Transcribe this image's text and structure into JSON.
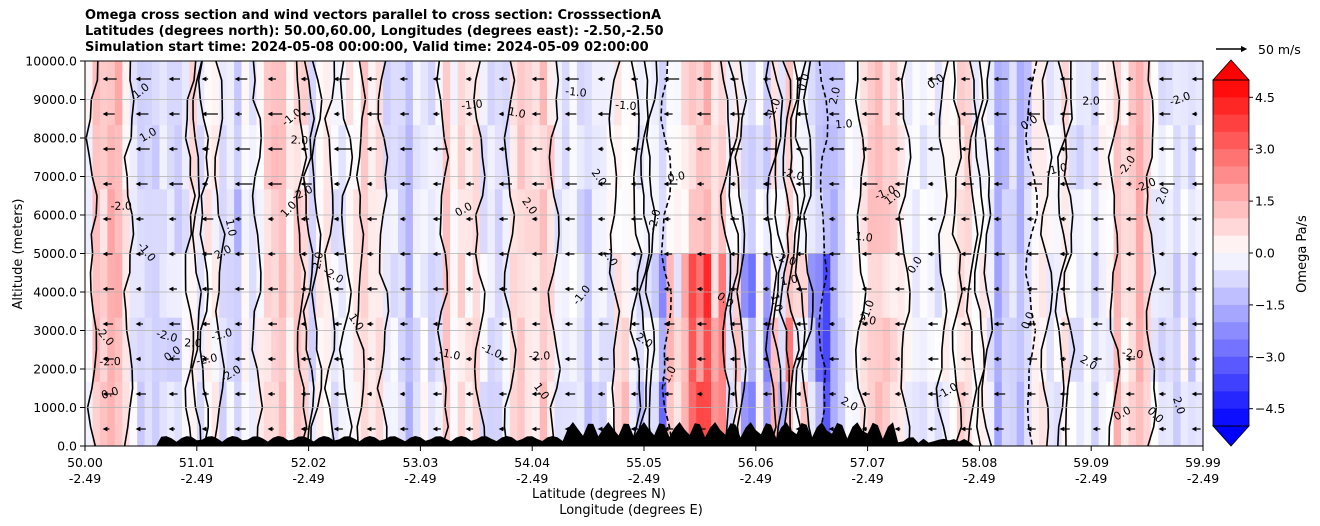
{
  "titles": [
    "Omega cross section and wind vectors parallel to cross section: CrosssectionA",
    "Latitudes (degrees north): 50.00,60.00, Longitudes (degrees east): -2.50,-2.50",
    "Simulation start time: 2024-05-08 00:00:00, Valid time: 2024-05-09 02:00:00"
  ],
  "chart_data": {
    "type": "heatmap",
    "ylabel": "Altitude (meters)",
    "xlabel_lat": "Latitude (degrees N)",
    "xlabel_lon": "Longitude (degrees E)",
    "ylim": [
      0,
      10000
    ],
    "y_ticks": [
      "0.0",
      "1000.0",
      "2000.0",
      "3000.0",
      "4000.0",
      "5000.0",
      "6000.0",
      "7000.0",
      "8000.0",
      "9000.0",
      "10000.0"
    ],
    "x_ticks_lat": [
      "50.00",
      "51.01",
      "52.02",
      "53.03",
      "54.04",
      "55.05",
      "56.06",
      "57.07",
      "58.08",
      "59.09",
      "59.99"
    ],
    "x_ticks_lon": [
      "-2.49",
      "-2.49",
      "-2.49",
      "-2.49",
      "-2.49",
      "-2.49",
      "-2.49",
      "-2.49",
      "-2.49",
      "-2.49",
      "-2.49"
    ],
    "grid": "horizontal",
    "colorbar": {
      "label": "Omega Pa/s",
      "ticks": [
        "4.5",
        "3.0",
        "1.5",
        "0.0",
        "−1.5",
        "−3.0",
        "−4.5"
      ],
      "range": [
        -5,
        5
      ],
      "colormap": "bwr",
      "extend": "both"
    },
    "quiver_key": "50 m/s",
    "contour_labels": [
      "0.0",
      "1.0",
      "2.0",
      "-1.0",
      "-2.0"
    ],
    "terrain": "black filled orography at bottom"
  },
  "colors": {
    "negative": "#0000ff",
    "positive": "#ff0000",
    "zero": "#ffffff",
    "contour": "#000000",
    "grid": "#b0b0b0"
  }
}
